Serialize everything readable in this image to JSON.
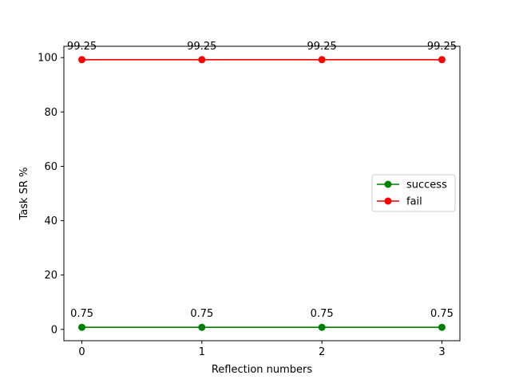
{
  "chart_data": {
    "type": "line",
    "title": "",
    "xlabel": "Reflection numbers",
    "ylabel": "Task SR %",
    "x": [
      0,
      1,
      2,
      3
    ],
    "xlim": [
      -0.15,
      3.15
    ],
    "ylim": [
      -4.175,
      104.175
    ],
    "xticks": [
      0,
      1,
      2,
      3
    ],
    "yticks": [
      0,
      20,
      40,
      60,
      80,
      100
    ],
    "grid": false,
    "legend_position": "center-right",
    "series": [
      {
        "name": "success",
        "color": "#008000",
        "values": [
          0.75,
          0.75,
          0.75,
          0.75
        ],
        "labels": [
          "0.75",
          "0.75",
          "0.75",
          "0.75"
        ]
      },
      {
        "name": "fail",
        "color": "#ff0000",
        "values": [
          99.25,
          99.25,
          99.25,
          99.25
        ],
        "labels": [
          "99.25",
          "99.25",
          "99.25",
          "99.25"
        ]
      }
    ]
  }
}
